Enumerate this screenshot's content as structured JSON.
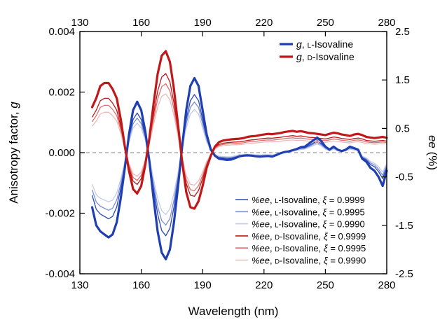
{
  "chart_data": {
    "type": "line",
    "xlabel": "Wavelength (nm)",
    "ylabel": "Anisotropy factor, g",
    "ylabel_italic": "g",
    "ylabel_right": "ee (%)",
    "xlim": [
      130,
      280
    ],
    "ylim": [
      -0.004,
      0.004
    ],
    "ylim_right": [
      -2.5,
      2.5
    ],
    "x_ticks": [
      "130",
      "160",
      "190",
      "220",
      "250",
      "280"
    ],
    "x_ticks_top": [
      "130",
      "160",
      "190",
      "220",
      "250",
      "280"
    ],
    "y_ticks": [
      "0.004",
      "0.002",
      "0.000",
      "-0.002",
      "-0.004"
    ],
    "y_ticks_right": [
      "2.5",
      "1.5",
      "0.5",
      "-0.5",
      "-1.5",
      "-2.5"
    ],
    "zero_line": "dashed",
    "legend_top": {
      "placement": "top-right",
      "entries": [
        {
          "label": "g, L-Isovaline",
          "color": "#1f3fb0",
          "width": 3.2
        },
        {
          "label": "g, D-Isovaline",
          "color": "#c01818",
          "width": 3.2
        }
      ]
    },
    "legend_bottom": {
      "placement": "bottom-right",
      "entries": [
        {
          "label": "%ee, L-Isovaline, ξ = 0.9999",
          "color": "#2a49b8"
        },
        {
          "label": "%ee, L-Isovaline, ξ = 0.9995",
          "color": "#7d90d4"
        },
        {
          "label": "%ee, L-Isovaline, ξ = 0.9990",
          "color": "#c3cbeb"
        },
        {
          "label": "%ee, D-Isovaline, ξ = 0.9999",
          "color": "#c01818"
        },
        {
          "label": "%ee, D-Isovaline, ξ = 0.9995",
          "color": "#dc7070"
        },
        {
          "label": "%ee, D-Isovaline, ξ = 0.9990",
          "color": "#efb8b8"
        }
      ]
    },
    "series": [
      {
        "name": "g, L-Isovaline",
        "axis": "left",
        "color": "#1f3fb0",
        "width": 3.2,
        "x": [
          136,
          138,
          140,
          142,
          144,
          146,
          148,
          150,
          152,
          154,
          156,
          158,
          160,
          162,
          164,
          166,
          168,
          170,
          172,
          174,
          176,
          178,
          180,
          182,
          184,
          186,
          188,
          190,
          192,
          194,
          196,
          198,
          200,
          202,
          204,
          206,
          208,
          210,
          212,
          214,
          216,
          218,
          220,
          222,
          224,
          226,
          228,
          230,
          232,
          234,
          236,
          238,
          240,
          242,
          244,
          246,
          248,
          250,
          252,
          254,
          256,
          258,
          260,
          262,
          264,
          266,
          268,
          270,
          272,
          274,
          276,
          278,
          280
        ],
        "y": [
          -0.0018,
          -0.0024,
          -0.0026,
          -0.0027,
          -0.0028,
          -0.0027,
          -0.0023,
          -0.0015,
          -0.0005,
          0.0006,
          0.0014,
          0.00168,
          0.0014,
          0.0007,
          -0.0003,
          -0.0015,
          -0.0026,
          -0.0033,
          -0.00352,
          -0.0032,
          -0.0023,
          -0.0011,
          0.0002,
          0.0014,
          0.0022,
          0.00246,
          0.0022,
          0.0014,
          0.0006,
          0.0001,
          -0.0001,
          -0.0002,
          -0.00022,
          -0.00024,
          -0.00023,
          -0.00018,
          -0.00012,
          -0.0001,
          -9e-05,
          -0.0001,
          -0.00012,
          -0.00013,
          -0.00012,
          -0.00011,
          -0.00013,
          -8e-05,
          -2e-05,
          2e-05,
          4e-05,
          8e-05,
          0.00012,
          0.00018,
          0.0002,
          0.0003,
          0.0004,
          0.0005,
          0.00038,
          0.0002,
          0.0001,
          0.0002,
          0.0001,
          5e-05,
          0.0001,
          0.0002,
          0.00015,
          0.0001,
          -0.0002,
          -0.0003,
          -0.0005,
          -0.0006,
          -0.0008,
          -0.0011,
          -0.0006
        ]
      },
      {
        "name": "g, D-Isovaline",
        "axis": "left",
        "color": "#c01818",
        "width": 3.2,
        "x": [
          136,
          138,
          140,
          142,
          144,
          146,
          148,
          150,
          152,
          154,
          156,
          158,
          160,
          162,
          164,
          166,
          168,
          170,
          172,
          174,
          176,
          178,
          180,
          182,
          184,
          186,
          188,
          190,
          192,
          194,
          196,
          198,
          200,
          202,
          204,
          206,
          208,
          210,
          212,
          214,
          216,
          218,
          220,
          222,
          224,
          226,
          228,
          230,
          232,
          234,
          236,
          238,
          240,
          242,
          244,
          246,
          248,
          250,
          252,
          254,
          256,
          258,
          260,
          262,
          264,
          266,
          268,
          270,
          272,
          274,
          276,
          278,
          280
        ],
        "y": [
          0.0015,
          0.0018,
          0.0022,
          0.0023,
          0.0023,
          0.0021,
          0.0018,
          0.0011,
          0.0002,
          -0.0006,
          -0.0012,
          -0.00135,
          -0.0011,
          -0.0004,
          0.0005,
          0.0016,
          0.0026,
          0.0032,
          0.00335,
          0.003,
          0.0021,
          0.0009,
          -0.0003,
          -0.0013,
          -0.0018,
          -0.00185,
          -0.0016,
          -0.0011,
          -0.0005,
          -0.0001,
          0.0002,
          0.00035,
          0.0004,
          0.00042,
          0.00044,
          0.00045,
          0.00046,
          0.00048,
          0.00052,
          0.00054,
          0.00055,
          0.00058,
          0.0006,
          0.00062,
          0.00061,
          0.00063,
          0.00065,
          0.00068,
          0.0007,
          0.00072,
          0.00069,
          0.00071,
          0.00068,
          0.00065,
          0.00064,
          0.00062,
          0.0006,
          0.00058,
          0.00062,
          0.00066,
          0.00064,
          0.0006,
          0.00058,
          0.00055,
          0.0006,
          0.00062,
          0.00058,
          0.00052,
          0.0005,
          0.00048,
          0.0005,
          0.00052,
          0.00049
        ]
      }
    ]
  }
}
